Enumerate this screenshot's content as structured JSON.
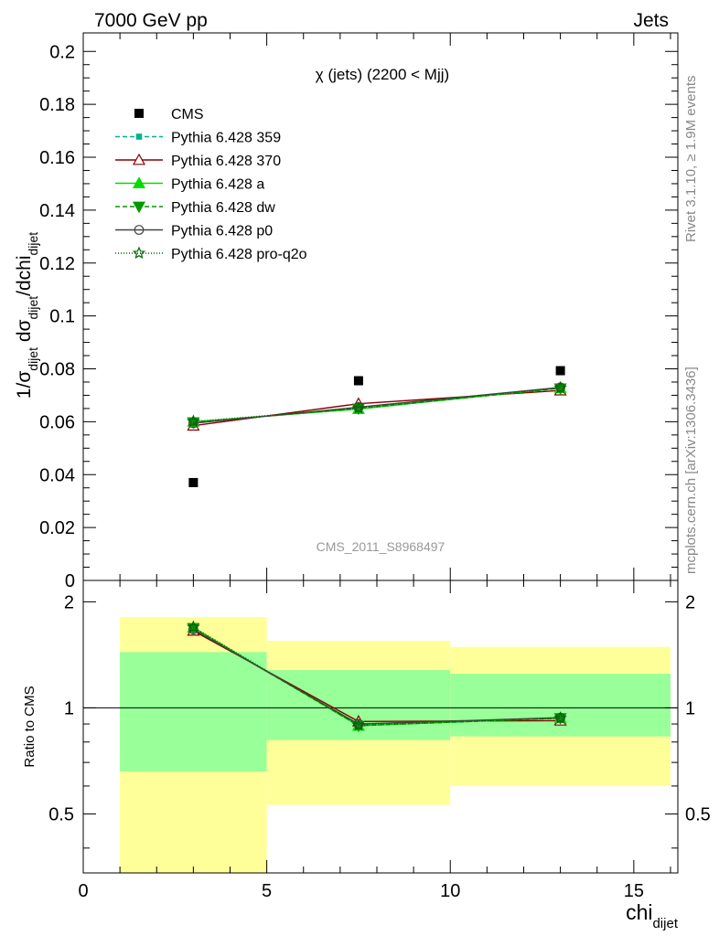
{
  "header": {
    "left": "7000 GeV pp",
    "right": "Jets"
  },
  "side_labels": {
    "rivet": "Rivet 3.1.10, ≥ 1.9M events",
    "mcplots": "mcplots.cern.ch [arXiv:1306.3436]"
  },
  "chart_data": [
    {
      "type": "scatter",
      "title": "χ (jets) (2200 < Mjj)",
      "watermark": "CMS_2011_S8968497",
      "ylabel_main": "1/σ",
      "ylabel_sub1": "dijet",
      "ylabel_mid": " dσ",
      "ylabel_sub2": "dijet",
      "ylabel_end": "/dchi",
      "ylabel_sub3": "dijet",
      "xlim": [
        0,
        16.2
      ],
      "ylim": [
        0,
        0.207
      ],
      "y_ticks": [
        0,
        0.02,
        0.04,
        0.06,
        0.08,
        0.1,
        0.12,
        0.14,
        0.16,
        0.18,
        0.2
      ],
      "y_tick_labels": [
        "0",
        "0.02",
        "0.04",
        "0.06",
        "0.08",
        "0.1",
        "0.12",
        "0.14",
        "0.16",
        "0.18",
        "0.2"
      ],
      "legend_position": "top-left",
      "data": {
        "name": "CMS",
        "color": "#000000",
        "x": [
          3,
          7.5,
          13
        ],
        "y": [
          0.037,
          0.0755,
          0.0793
        ],
        "xerr_lo": [
          2,
          2.5,
          3
        ],
        "xerr_hi": [
          2,
          2.5,
          3
        ]
      },
      "series": [
        {
          "name": "Pythia 6.428 359",
          "color": "#00b38f",
          "dash": "5,3",
          "marker": "square-small",
          "x": [
            3,
            7.5,
            13
          ],
          "y": [
            0.0597,
            0.0652,
            0.0728
          ]
        },
        {
          "name": "Pythia 6.428 370",
          "color": "#8b0000",
          "dash": "",
          "marker": "triangle-open",
          "x": [
            3,
            7.5,
            13
          ],
          "y": [
            0.0585,
            0.0668,
            0.0718
          ]
        },
        {
          "name": "Pythia 6.428 a",
          "color": "#00dd00",
          "dash": "",
          "marker": "triangle",
          "x": [
            3,
            7.5,
            13
          ],
          "y": [
            0.06,
            0.0648,
            0.0727
          ]
        },
        {
          "name": "Pythia 6.428 dw",
          "color": "#009900",
          "dash": "5,3",
          "marker": "triangle-down",
          "x": [
            3,
            7.5,
            13
          ],
          "y": [
            0.0598,
            0.065,
            0.0726
          ]
        },
        {
          "name": "Pythia 6.428 p0",
          "color": "#444444",
          "dash": "",
          "marker": "circle-open",
          "x": [
            3,
            7.5,
            13
          ],
          "y": [
            0.0594,
            0.0655,
            0.073
          ]
        },
        {
          "name": "Pythia 6.428 pro-q2o",
          "color": "#006600",
          "dash": "1,2",
          "marker": "star-open",
          "x": [
            3,
            7.5,
            13
          ],
          "y": [
            0.0601,
            0.0651,
            0.0728
          ]
        }
      ]
    },
    {
      "type": "scatter",
      "ylabel": "Ratio to CMS",
      "xlabel": "chi",
      "xlabel_sub": "dijet",
      "xlim": [
        0,
        16.2
      ],
      "ylim": [
        0.34,
        2.3
      ],
      "x_ticks": [
        0,
        5,
        10,
        15
      ],
      "x_tick_labels": [
        "0",
        "5",
        "10",
        "15"
      ],
      "y_ticks": [
        0.5,
        1,
        2
      ],
      "y_tick_labels": [
        "0.5",
        "1",
        "2"
      ],
      "reference_line": 1,
      "bands": [
        {
          "x_lo": 1,
          "x_hi": 5,
          "stat_lo": 0.66,
          "stat_hi": 1.44,
          "tot_lo": 0.34,
          "tot_hi": 1.81
        },
        {
          "x_lo": 5,
          "x_hi": 10,
          "stat_lo": 0.81,
          "stat_hi": 1.28,
          "tot_lo": 0.53,
          "tot_hi": 1.55
        },
        {
          "x_lo": 10,
          "x_hi": 16,
          "stat_lo": 0.83,
          "stat_hi": 1.25,
          "tot_lo": 0.6,
          "tot_hi": 1.49
        }
      ],
      "band_colors": {
        "total": "#ffff99",
        "stat": "#99ff99"
      },
      "series": [
        {
          "name": "Pythia 6.428 359",
          "color": "#00b38f",
          "dash": "5,3",
          "marker": "square-small",
          "x": [
            3,
            7.5,
            13
          ],
          "y": [
            1.68,
            0.895,
            0.935
          ]
        },
        {
          "name": "Pythia 6.428 370",
          "color": "#8b0000",
          "dash": "",
          "marker": "triangle-open",
          "x": [
            3,
            7.5,
            13
          ],
          "y": [
            1.655,
            0.915,
            0.92
          ]
        },
        {
          "name": "Pythia 6.428 a",
          "color": "#00dd00",
          "dash": "",
          "marker": "triangle",
          "x": [
            3,
            7.5,
            13
          ],
          "y": [
            1.69,
            0.89,
            0.935
          ]
        },
        {
          "name": "Pythia 6.428 dw",
          "color": "#009900",
          "dash": "5,3",
          "marker": "triangle-down",
          "x": [
            3,
            7.5,
            13
          ],
          "y": [
            1.685,
            0.89,
            0.935
          ]
        },
        {
          "name": "Pythia 6.428 p0",
          "color": "#444444",
          "dash": "",
          "marker": "circle-open",
          "x": [
            3,
            7.5,
            13
          ],
          "y": [
            1.67,
            0.9,
            0.938
          ]
        },
        {
          "name": "Pythia 6.428 pro-q2o",
          "color": "#006600",
          "dash": "1,2",
          "marker": "star-open",
          "x": [
            3,
            7.5,
            13
          ],
          "y": [
            1.695,
            0.893,
            0.935
          ]
        }
      ]
    }
  ]
}
